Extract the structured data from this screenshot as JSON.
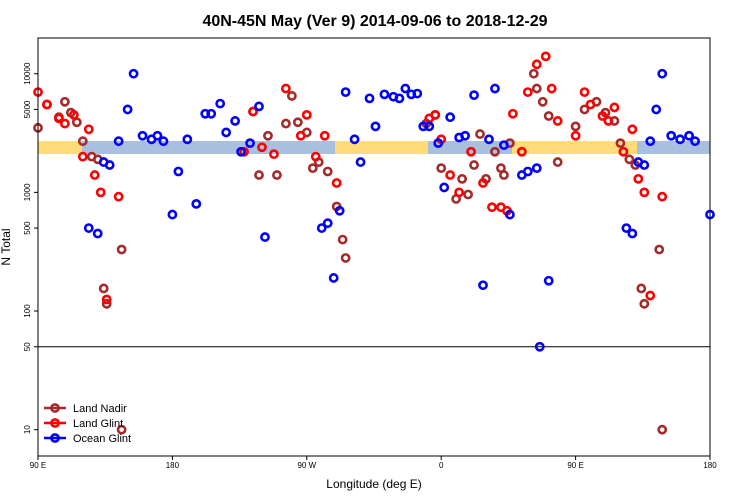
{
  "chart_data": {
    "type": "scatter",
    "title": "40N-45N May (Ver 9)   2014-09-06 to 2018-12-29",
    "xlabel": "Longitude (deg E)",
    "ylabel": "N Total",
    "y_scale": "log",
    "ylim": [
      6,
      20000
    ],
    "x_ticks": [
      "90 E",
      "180",
      "90 W",
      "0",
      "90 E",
      "180"
    ],
    "y_ticks": [
      "10",
      "50",
      "100",
      "500",
      "1000",
      "5000",
      "10000"
    ],
    "reference_line_y": 50,
    "background_bands": [
      {
        "color": "#a8bfe0",
        "description": "ocean"
      },
      {
        "color": "#ffdb7a",
        "description": "land"
      }
    ],
    "legend": {
      "position": "bottom-left"
    },
    "series": [
      {
        "name": "Land Nadir",
        "color": "#a52a2a",
        "points": [
          [
            90,
            3500
          ],
          [
            96,
            5500
          ],
          [
            104,
            4300
          ],
          [
            108,
            5800
          ],
          [
            112,
            4700
          ],
          [
            116,
            3900
          ],
          [
            120,
            2700
          ],
          [
            126,
            2000
          ],
          [
            130,
            1900
          ],
          [
            134,
            155
          ],
          [
            136,
            115
          ],
          [
            146,
            330
          ],
          [
            146,
            10
          ],
          [
            234,
            4800
          ],
          [
            238,
            1400
          ],
          [
            244,
            3000
          ],
          [
            250,
            1400
          ],
          [
            256,
            3800
          ],
          [
            260,
            6500
          ],
          [
            264,
            3900
          ],
          [
            270,
            3200
          ],
          [
            274,
            1600
          ],
          [
            278,
            1800
          ],
          [
            284,
            1500
          ],
          [
            290,
            760
          ],
          [
            294,
            400
          ],
          [
            296,
            280
          ],
          [
            350,
            3800
          ],
          [
            356,
            4500
          ],
          [
            360,
            1600
          ],
          [
            370,
            880
          ],
          [
            374,
            1300
          ],
          [
            378,
            960
          ],
          [
            382,
            1700
          ],
          [
            386,
            3100
          ],
          [
            390,
            1300
          ],
          [
            396,
            2200
          ],
          [
            400,
            1600
          ],
          [
            402,
            1400
          ],
          [
            406,
            2600
          ],
          [
            422,
            10000
          ],
          [
            424,
            7500
          ],
          [
            428,
            5800
          ],
          [
            432,
            4400
          ],
          [
            438,
            1800
          ],
          [
            450,
            3600
          ],
          [
            456,
            5000
          ],
          [
            464,
            5800
          ],
          [
            470,
            4700
          ],
          [
            476,
            4000
          ],
          [
            480,
            2600
          ],
          [
            486,
            1900
          ],
          [
            490,
            1700
          ],
          [
            494,
            155
          ],
          [
            496,
            115
          ],
          [
            506,
            330
          ],
          [
            508,
            10
          ]
        ]
      },
      {
        "name": "Land Glint",
        "color": "#ff0000",
        "points": [
          [
            90,
            7000
          ],
          [
            96,
            5500
          ],
          [
            104,
            4200
          ],
          [
            108,
            3800
          ],
          [
            114,
            4500
          ],
          [
            120,
            2000
          ],
          [
            124,
            3400
          ],
          [
            128,
            1400
          ],
          [
            132,
            1000
          ],
          [
            136,
            125
          ],
          [
            144,
            920
          ],
          [
            228,
            2200
          ],
          [
            234,
            4800
          ],
          [
            240,
            2400
          ],
          [
            248,
            2100
          ],
          [
            256,
            7500
          ],
          [
            266,
            3000
          ],
          [
            270,
            4500
          ],
          [
            276,
            2000
          ],
          [
            282,
            3000
          ],
          [
            290,
            1200
          ],
          [
            352,
            4200
          ],
          [
            356,
            4500
          ],
          [
            360,
            2800
          ],
          [
            366,
            1400
          ],
          [
            372,
            1000
          ],
          [
            380,
            2200
          ],
          [
            388,
            1200
          ],
          [
            394,
            750
          ],
          [
            400,
            750
          ],
          [
            404,
            700
          ],
          [
            408,
            4600
          ],
          [
            414,
            2200
          ],
          [
            418,
            7000
          ],
          [
            424,
            12000
          ],
          [
            430,
            14000
          ],
          [
            434,
            7500
          ],
          [
            438,
            4000
          ],
          [
            450,
            3000
          ],
          [
            456,
            7000
          ],
          [
            460,
            5500
          ],
          [
            468,
            4400
          ],
          [
            472,
            4000
          ],
          [
            476,
            5200
          ],
          [
            482,
            2200
          ],
          [
            488,
            3400
          ],
          [
            492,
            1300
          ],
          [
            496,
            1000
          ],
          [
            500,
            135
          ],
          [
            508,
            920
          ]
        ]
      },
      {
        "name": "Ocean Glint",
        "color": "#0000ff",
        "points": [
          [
            124,
            500
          ],
          [
            130,
            450
          ],
          [
            134,
            1800
          ],
          [
            138,
            1700
          ],
          [
            144,
            2700
          ],
          [
            150,
            5000
          ],
          [
            154,
            10000
          ],
          [
            160,
            3000
          ],
          [
            166,
            2800
          ],
          [
            170,
            3000
          ],
          [
            174,
            2700
          ],
          [
            180,
            650
          ],
          [
            184,
            1500
          ],
          [
            190,
            2800
          ],
          [
            196,
            800
          ],
          [
            202,
            4600
          ],
          [
            206,
            4600
          ],
          [
            212,
            5600
          ],
          [
            216,
            3200
          ],
          [
            222,
            4000
          ],
          [
            226,
            2200
          ],
          [
            232,
            2600
          ],
          [
            238,
            5300
          ],
          [
            242,
            420
          ],
          [
            280,
            500
          ],
          [
            284,
            550
          ],
          [
            288,
            190
          ],
          [
            292,
            700
          ],
          [
            296,
            7000
          ],
          [
            302,
            2800
          ],
          [
            306,
            1800
          ],
          [
            312,
            6200
          ],
          [
            316,
            3600
          ],
          [
            322,
            6700
          ],
          [
            328,
            6400
          ],
          [
            332,
            6200
          ],
          [
            336,
            7500
          ],
          [
            340,
            6700
          ],
          [
            344,
            6800
          ],
          [
            348,
            3600
          ],
          [
            352,
            3600
          ],
          [
            358,
            2600
          ],
          [
            362,
            1100
          ],
          [
            366,
            4300
          ],
          [
            372,
            2900
          ],
          [
            376,
            3000
          ],
          [
            382,
            6600
          ],
          [
            388,
            165
          ],
          [
            392,
            2800
          ],
          [
            396,
            7500
          ],
          [
            402,
            2500
          ],
          [
            406,
            650
          ],
          [
            414,
            1400
          ],
          [
            418,
            1500
          ],
          [
            424,
            1600
          ],
          [
            426,
            50
          ],
          [
            432,
            180
          ],
          [
            484,
            500
          ],
          [
            488,
            450
          ],
          [
            492,
            1800
          ],
          [
            496,
            1700
          ],
          [
            500,
            2700
          ],
          [
            504,
            5000
          ],
          [
            508,
            10000
          ],
          [
            514,
            3000
          ],
          [
            520,
            2800
          ],
          [
            526,
            3000
          ],
          [
            530,
            2700
          ],
          [
            540,
            650
          ]
        ]
      }
    ]
  }
}
